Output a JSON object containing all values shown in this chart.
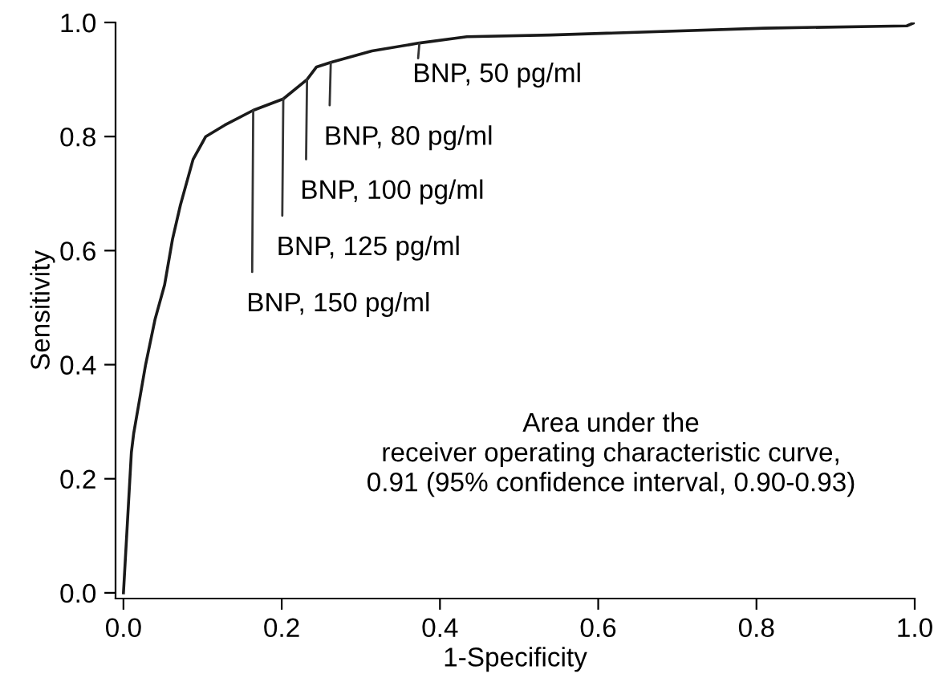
{
  "chart_data": {
    "type": "line",
    "xlabel": "1-Specificity",
    "ylabel": "Sensitivity",
    "x": [
      0,
      0.01,
      0.013,
      0.028,
      0.04,
      0.052,
      0.062,
      0.072,
      0.088,
      0.104,
      0.128,
      0.164,
      0.202,
      0.232,
      0.244,
      0.262,
      0.314,
      0.374,
      0.434,
      0.54,
      0.81,
      0.99,
      1.0
    ],
    "series": [
      {
        "color": "#1a1a1a",
        "values": [
          0,
          0.246,
          0.28,
          0.4,
          0.48,
          0.54,
          0.62,
          0.68,
          0.76,
          0.8,
          0.82,
          0.846,
          0.866,
          0.9,
          0.922,
          0.93,
          0.95,
          0.964,
          0.975,
          0.978,
          0.99,
          0.994,
          1.0
        ]
      }
    ],
    "xlim": [
      -0.01,
      1.0
    ],
    "ylim": [
      -0.01,
      1.0
    ],
    "xticks": [
      {
        "value": 0,
        "label": "0.0"
      },
      0.2,
      0.4,
      0.6,
      0.8,
      {
        "value": 1,
        "label": "1.0"
      }
    ],
    "yticks": [
      {
        "value": 0,
        "label": "0.0"
      },
      0.2,
      0.4,
      0.6,
      0.8,
      {
        "value": 1,
        "label": "1.0"
      }
    ],
    "grid": false,
    "marker": "none",
    "line_style": "solid",
    "annotations": [
      {
        "text": "BNP, 50 pg/ml",
        "x": 0.374,
        "y": 0.964
      },
      {
        "text": "BNP, 80 pg/ml",
        "x": 0.262,
        "y": 0.93
      },
      {
        "text": "BNP, 100 pg/ml",
        "x": 0.232,
        "y": 0.9
      },
      {
        "text": "BNP, 125 pg/ml",
        "x": 0.202,
        "y": 0.866
      },
      {
        "text": "BNP, 150 pg/ml",
        "x": 0.164,
        "y": 0.846
      },
      "Area under the\nreceiver operating characteristic curve,\n0.91 (95% confidence interval, 0.90-0.93)"
    ]
  }
}
